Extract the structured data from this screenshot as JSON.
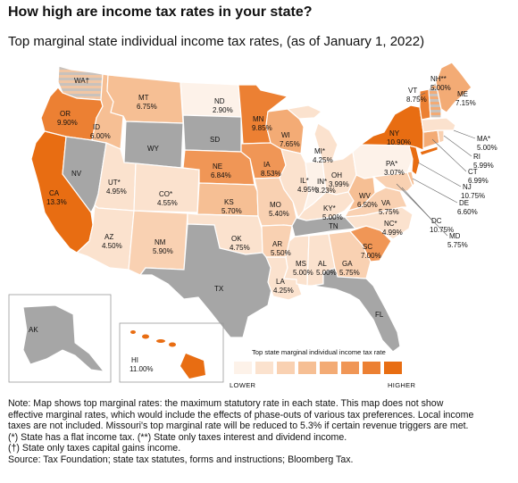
{
  "title": "How high are income tax rates in your state?",
  "subtitle": "Top marginal state individual income tax rates, (as of January 1, 2022)",
  "legend": {
    "title": "Top state marginal individual income tax rate",
    "low_label": "LOWER",
    "high_label": "HIGHER",
    "colors": [
      "#fdf2e9",
      "#fbe2ce",
      "#f9d1b2",
      "#f6bf94",
      "#f3ab75",
      "#f09656",
      "#ec8033",
      "#e86d12"
    ]
  },
  "colors": {
    "no_tax": "#a6a6a6",
    "wages_exempt_hatch": "#c8c8c8",
    "border": "#ffffff"
  },
  "states": {
    "WA": {
      "label": "WA†",
      "value": ""
    },
    "OR": {
      "label": "OR",
      "value": "9.90%"
    },
    "CA": {
      "label": "CA",
      "value": "13.3%"
    },
    "NV": {
      "label": "NV",
      "value": ""
    },
    "ID": {
      "label": "ID",
      "value": "6.00%"
    },
    "MT": {
      "label": "MT",
      "value": "6.75%"
    },
    "WY": {
      "label": "WY",
      "value": ""
    },
    "UT": {
      "label": "UT*",
      "value": "4.95%"
    },
    "AZ": {
      "label": "AZ",
      "value": "4.50%"
    },
    "CO": {
      "label": "CO*",
      "value": "4.55%"
    },
    "NM": {
      "label": "NM",
      "value": "5.90%"
    },
    "ND": {
      "label": "ND",
      "value": "2.90%"
    },
    "SD": {
      "label": "SD",
      "value": ""
    },
    "NE": {
      "label": "NE",
      "value": "6.84%"
    },
    "KS": {
      "label": "KS",
      "value": "5.70%"
    },
    "OK": {
      "label": "OK",
      "value": "4.75%"
    },
    "TX": {
      "label": "TX",
      "value": ""
    },
    "MN": {
      "label": "MN",
      "value": "9.85%"
    },
    "IA": {
      "label": "IA",
      "value": "8.53%"
    },
    "MO": {
      "label": "MO",
      "value": "5.40%"
    },
    "AR": {
      "label": "AR",
      "value": "5.50%"
    },
    "LA": {
      "label": "LA",
      "value": "4.25%"
    },
    "WI": {
      "label": "WI",
      "value": "7.65%"
    },
    "IL": {
      "label": "IL*",
      "value": "4.95%"
    },
    "MI": {
      "label": "MI*",
      "value": "4.25%"
    },
    "IN": {
      "label": "IN*",
      "value": "3.23%"
    },
    "OH": {
      "label": "OH",
      "value": "3.99%"
    },
    "KY": {
      "label": "KY*",
      "value": "5.00%"
    },
    "TN": {
      "label": "TN",
      "value": ""
    },
    "MS": {
      "label": "MS",
      "value": "5.00%"
    },
    "AL": {
      "label": "AL",
      "value": "5.00%"
    },
    "GA": {
      "label": "GA",
      "value": "5.75%"
    },
    "FL": {
      "label": "FL",
      "value": ""
    },
    "SC": {
      "label": "SC",
      "value": "7.00%"
    },
    "NC": {
      "label": "NC*",
      "value": "4.99%"
    },
    "VA": {
      "label": "VA",
      "value": "5.75%"
    },
    "WV": {
      "label": "WV",
      "value": "6.50%"
    },
    "PA": {
      "label": "PA*",
      "value": "3.07%"
    },
    "NY": {
      "label": "NY",
      "value": "10.90%"
    },
    "VT": {
      "label": "VT",
      "value": "8.75%"
    },
    "NH": {
      "label": "NH**",
      "value": "5.00%"
    },
    "ME": {
      "label": "ME",
      "value": "7.15%"
    },
    "MA": {
      "label": "MA*",
      "value": "5.00%"
    },
    "RI": {
      "label": "RI",
      "value": "5.99%"
    },
    "CT": {
      "label": "CT",
      "value": "6.99%"
    },
    "NJ": {
      "label": "NJ",
      "value": "10.75%"
    },
    "DE": {
      "label": "DE",
      "value": "6.60%"
    },
    "MD": {
      "label": "MD",
      "value": "5.75%"
    },
    "DC": {
      "label": "DC",
      "value": "10.75%"
    },
    "AK": {
      "label": "AK",
      "value": ""
    },
    "HI": {
      "label": "HI",
      "value": "11.00%"
    }
  },
  "notes": [
    "Note: Map shows top marginal rates: the maximum statutory rate in each state. This map does not show",
    "effective marginal rates, which would include the effects of phase-outs of various tax preferences. Local income",
    "taxes are not included. Missouri's top marginal rate will be reduced to 5.3% if certain revenue triggers are met.",
    "(*) State has a flat income tax. (**) State only taxes interest and dividend income.",
    "(†) State only taxes capital gains income.",
    "Source: Tax Foundation; state tax statutes, forms and instructions; Bloomberg Tax."
  ]
}
